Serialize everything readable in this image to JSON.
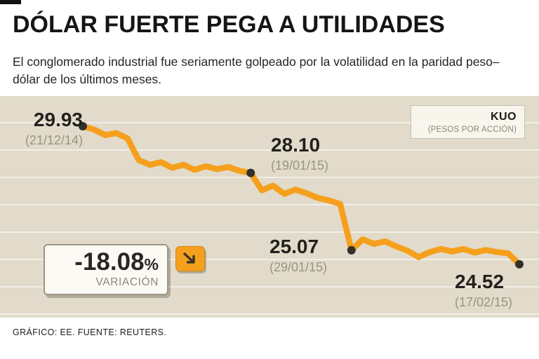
{
  "header": {
    "title": "DÓLAR FUERTE PEGA A UTILIDADES",
    "subtitle": "El conglomerado industrial fue seriamente golpeado por la volatilidad en la paridad peso–dólar de los últimos meses."
  },
  "legend": {
    "symbol": "KUO",
    "unit": "(PESOS POR ACCIÓN)"
  },
  "annotations": [
    {
      "price": "29.93",
      "date": "(21/12/14)"
    },
    {
      "price": "28.10",
      "date": "(19/01/15)"
    },
    {
      "price": "25.07",
      "date": "(29/01/15)"
    },
    {
      "price": "24.52",
      "date": "(17/02/15)"
    }
  ],
  "variation": {
    "value": "-18.08",
    "percent_sign": "%",
    "label": "VARIACIÓN",
    "arrow_icon": "down-right-arrow"
  },
  "footer": {
    "credit": "GRÁFICO: EE. FUENTE: REUTERS."
  },
  "colors": {
    "background": "#e2dbcb",
    "line": "#f5a01d",
    "marker": "#33302b",
    "accent_orange": "#f5a01d"
  },
  "chart_data": {
    "type": "line",
    "title": "DÓLAR FUERTE PEGA A UTILIDADES",
    "series_name": "KUO",
    "ylabel": "PESOS POR ACCIÓN",
    "x_range": [
      "21/12/14",
      "17/02/15"
    ],
    "ylim": [
      24.2,
      30.3
    ],
    "grid": true,
    "legend_position": "top-right",
    "line_color": "#f5a01d",
    "marker_color": "#33302b",
    "key_points": [
      {
        "date": "21/12/14",
        "price": 29.93
      },
      {
        "date": "19/01/15",
        "price": 28.1
      },
      {
        "date": "29/01/15",
        "price": 25.07
      },
      {
        "date": "17/02/15",
        "price": 24.52
      }
    ],
    "variation_pct": -18.08,
    "prices": [
      29.93,
      29.8,
      29.58,
      29.66,
      29.45,
      28.6,
      28.42,
      28.52,
      28.3,
      28.42,
      28.22,
      28.36,
      28.25,
      28.33,
      28.18,
      28.1,
      27.42,
      27.6,
      27.28,
      27.45,
      27.3,
      27.12,
      27.02,
      26.88,
      25.07,
      25.5,
      25.32,
      25.42,
      25.22,
      25.05,
      24.8,
      25.0,
      25.12,
      25.02,
      25.12,
      24.98,
      25.08,
      25.0,
      24.95,
      24.52
    ],
    "marker_indices": [
      0,
      15,
      24,
      39
    ]
  }
}
